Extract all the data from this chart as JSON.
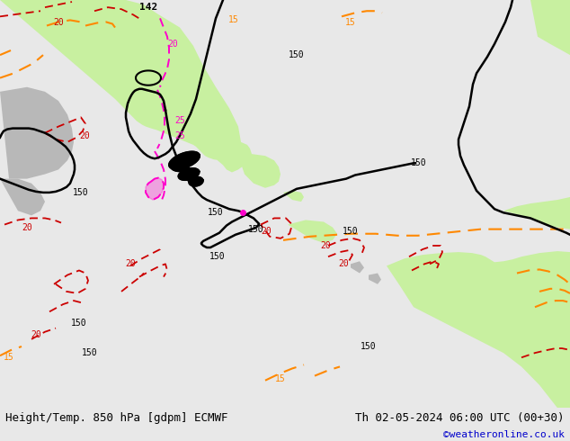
{
  "title_left": "Height/Temp. 850 hPa [gdpm] ECMWF",
  "title_right": "Th 02-05-2024 06:00 UTC (00+30)",
  "credit": "©weatheronline.co.uk",
  "bg_color": "#e8e8e8",
  "ocean_color": "#e8e8e8",
  "land_color": "#c8f0a0",
  "land_color2": "#c8f0a0",
  "gray_land_color": "#c0c0c0",
  "figsize": [
    6.34,
    4.9
  ],
  "dpi": 100,
  "credit_color": "#0000cc",
  "title_color": "#000000",
  "title_fontsize": 9,
  "credit_fontsize": 8,
  "black_lw": 1.8,
  "red_color": "#cc0000",
  "magenta_color": "#ff00cc",
  "orange_color": "#ff8800",
  "red_lw": 1.3,
  "orange_lw": 1.5
}
